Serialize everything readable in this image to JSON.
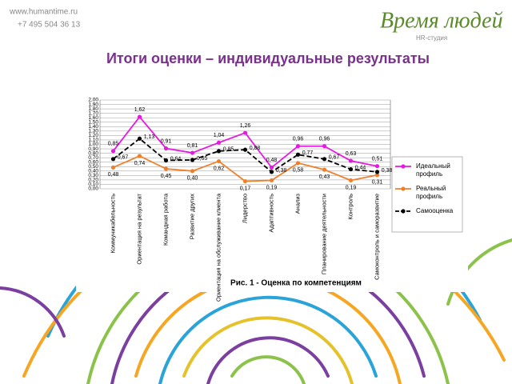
{
  "header": {
    "website": "www.humantime.ru",
    "phone": "+7 495 504 36 13",
    "logo": "Время людей",
    "logo_subtitle": "HR-студия",
    "title": "Итоги оценки – индивидуальные результаты"
  },
  "chart_data": {
    "type": "line",
    "caption": "Рис. 1 - Оценка по компетенциям",
    "categories": [
      "Коммуникабельность",
      "Ориентация на результат",
      "Командная работа",
      "Развитие других",
      "Ориентация на обслуживание клиента",
      "Лидерство",
      "Адаптивность",
      "Анализ",
      "Планирование деятельности",
      "Контроль",
      "Самоконтроль и саморазвитие"
    ],
    "series": [
      {
        "name": "Идеальный профиль",
        "color": "#e619e0",
        "line_style": "solid",
        "values": [
          0.85,
          1.62,
          0.91,
          0.81,
          1.04,
          1.26,
          0.48,
          0.96,
          0.96,
          0.63,
          0.51
        ],
        "value_labels": [
          "0,85",
          "1,62",
          "0,91",
          "0,81",
          "1,04",
          "1,26",
          "0,48",
          "0,96",
          "0,96",
          "0,63",
          "0,51"
        ]
      },
      {
        "name": "Реальный профиль",
        "color": "#f07f2a",
        "line_style": "solid",
        "values": [
          0.48,
          0.74,
          0.45,
          0.4,
          0.62,
          0.17,
          0.19,
          0.58,
          0.43,
          0.19,
          0.31
        ],
        "value_labels": [
          "0,48",
          "0,74",
          "0,45",
          "0,40",
          "0,62",
          "0,17",
          "0,19",
          "0,58",
          "0,43",
          "0,19",
          "0,31"
        ]
      },
      {
        "name": "Самооценка",
        "color": "#000000",
        "line_style": "dashed",
        "values": [
          0.67,
          1.13,
          0.64,
          0.65,
          0.85,
          0.88,
          0.38,
          0.77,
          0.67,
          0.44,
          0.38
        ],
        "value_labels": [
          "0,67",
          "1,13",
          "0,64",
          "0,65",
          "0,85",
          "0,88",
          "0,38",
          "0,77",
          "0,67",
          "0,44",
          "0,38"
        ]
      }
    ],
    "ylim": [
      0,
      2
    ],
    "yticks": [
      {
        "value": 0,
        "label": "0,00"
      },
      {
        "value": 0.1,
        "label": "0,10"
      },
      {
        "value": 0.2,
        "label": "0,20"
      },
      {
        "value": 0.3,
        "label": "0,30"
      },
      {
        "value": 0.4,
        "label": "0,40"
      },
      {
        "value": 0.5,
        "label": "0,50"
      },
      {
        "value": 0.6,
        "label": "0,60"
      },
      {
        "value": 0.7,
        "label": "0,70"
      },
      {
        "value": 0.8,
        "label": "0,80"
      },
      {
        "value": 0.9,
        "label": "0,90"
      },
      {
        "value": 1,
        "label": "1,00"
      },
      {
        "value": 1.1,
        "label": "1,10"
      },
      {
        "value": 1.2,
        "label": "1,20"
      },
      {
        "value": 1.3,
        "label": "1,30"
      },
      {
        "value": 1.4,
        "label": "1,40"
      },
      {
        "value": 1.5,
        "label": "1,50"
      },
      {
        "value": 1.6,
        "label": "1,60"
      },
      {
        "value": 1.7,
        "label": "1,70"
      },
      {
        "value": 1.8,
        "label": "1,80"
      },
      {
        "value": 1.9,
        "label": "1,90"
      },
      {
        "value": 2,
        "label": "2,00"
      }
    ],
    "grid": true,
    "legend": "right"
  }
}
